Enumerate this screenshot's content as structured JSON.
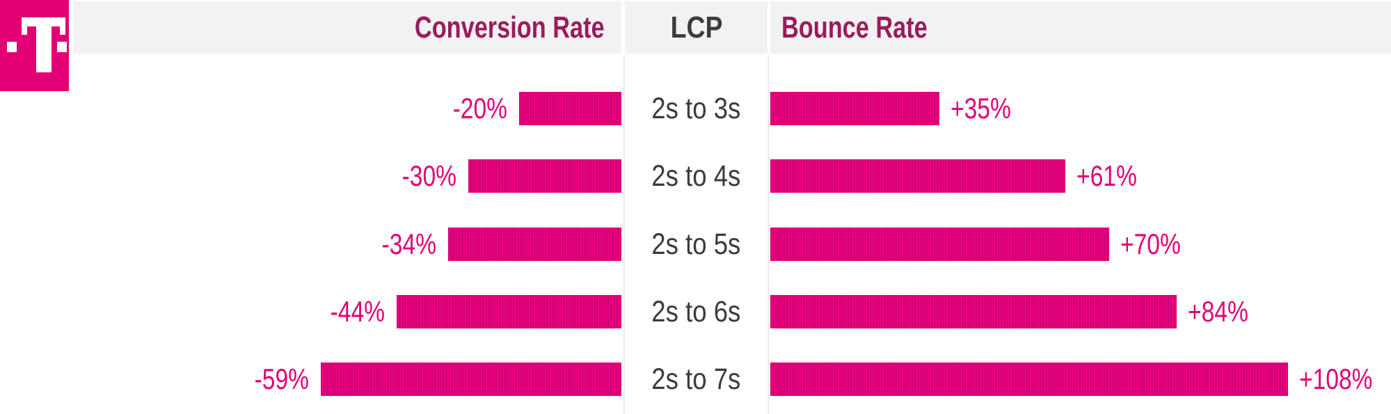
{
  "brand": {
    "logo_icon": "t-logo-icon",
    "logo_glyph": "T"
  },
  "header": {
    "conversion_label": "Conversion Rate",
    "lcp_label": "LCP",
    "bounce_label": "Bounce Rate"
  },
  "colors": {
    "magenta": "#E20074",
    "bar_fill": "#E5007D",
    "bar_stripe": "#C8006B",
    "header_text": "#9B1B5B",
    "dark_text": "#3C3C3C",
    "header_bg": "#F2F2F2",
    "separator": "#EAEAEA"
  },
  "chart_data": {
    "type": "bar",
    "orientation": "horizontal",
    "layout_hint": "diverging tornado chart; shared center axis lists LCP time buckets; left bars grow leftward (negative), right bars grow rightward (positive); no gridlines; column headers act as legend",
    "center_axis_title": "LCP",
    "categories": [
      "2s to 3s",
      "2s to 4s",
      "2s to 5s",
      "2s to 6s",
      "2s to 7s"
    ],
    "series": [
      {
        "name": "Conversion Rate",
        "side": "left",
        "values": [
          -20,
          -30,
          -34,
          -44,
          -59
        ],
        "labels": [
          "-20%",
          "-30%",
          "-34%",
          "-44%",
          "-59%"
        ]
      },
      {
        "name": "Bounce Rate",
        "side": "right",
        "values": [
          35,
          61,
          70,
          84,
          108
        ],
        "labels": [
          "+35%",
          "+61%",
          "+70%",
          "+84%",
          "+108%"
        ]
      }
    ],
    "grid": false,
    "legend_position": "top"
  }
}
